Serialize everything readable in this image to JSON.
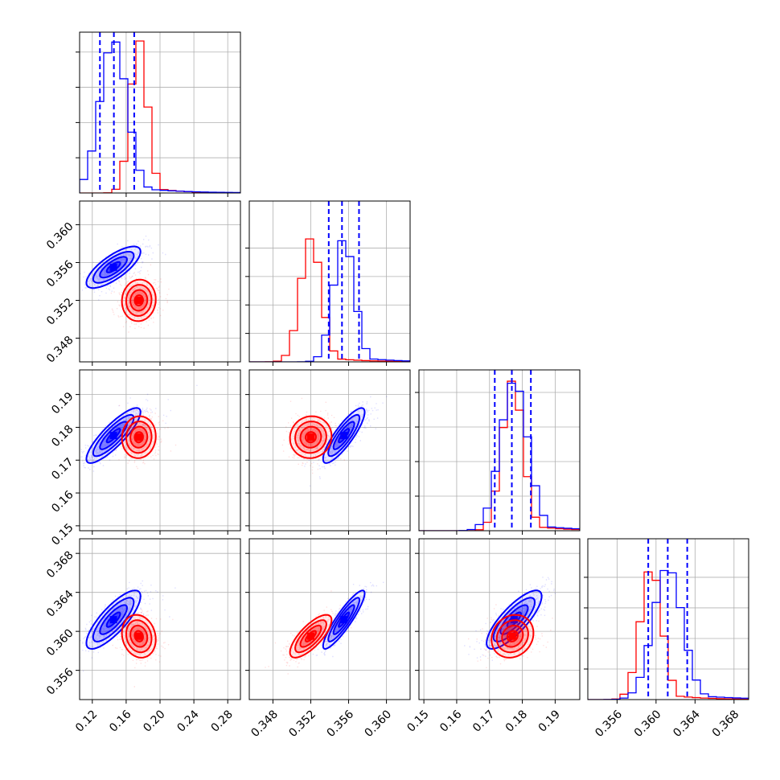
{
  "chart_data": {
    "type": "scatter",
    "subtype": "corner-plot",
    "title": "",
    "grid": true,
    "colors": {
      "red": "#ff0000",
      "blue": "#0000ff",
      "frame": "#000000",
      "grid": "#b0b0b0"
    },
    "params": [
      {
        "range": [
          0.105,
          0.295
        ],
        "ticks": [
          "0.12",
          "0.16",
          "0.20",
          "0.24",
          "0.28"
        ]
      },
      {
        "range": [
          0.3455,
          0.3625
        ],
        "ticks": [
          "0.348",
          "0.352",
          "0.356",
          "0.360"
        ]
      },
      {
        "range": [
          0.1485,
          0.1975
        ],
        "ticks": [
          "0.15",
          "0.16",
          "0.17",
          "0.18",
          "0.19"
        ]
      },
      {
        "range": [
          0.353,
          0.3695
        ],
        "ticks": [
          "0.356",
          "0.360",
          "0.364",
          "0.368"
        ]
      }
    ],
    "series": [
      {
        "color": "red",
        "mean": [
          0.175,
          0.352,
          0.177,
          0.3595
        ],
        "sd": [
          0.01,
          0.0011,
          0.0032,
          0.0011
        ]
      },
      {
        "color": "blue",
        "mean": [
          0.145,
          0.3555,
          0.1775,
          0.3612
        ],
        "sd": [
          0.016,
          0.0011,
          0.0042,
          0.0015
        ]
      }
    ],
    "correlations": {
      "red": {
        "1-0": 0.05,
        "2-0": 0.05,
        "2-1": 0.05,
        "3-0": -0.15,
        "3-1": 0.75,
        "3-2": 0.15
      },
      "blue": {
        "1-0": 0.75,
        "2-0": 0.85,
        "2-1": 0.85,
        "3-0": 0.8,
        "3-1": 0.9,
        "3-2": 0.8
      }
    },
    "quantile_lines": [
      [
        0.129,
        0.1455,
        0.1695
      ],
      [
        0.3539,
        0.3553,
        0.3571
      ],
      [
        0.1716,
        0.1768,
        0.1826
      ],
      [
        0.3592,
        0.3612,
        0.3632
      ]
    ],
    "hist_ymax": [
      1.05,
      1.3,
      1.07,
      1.21
    ]
  }
}
